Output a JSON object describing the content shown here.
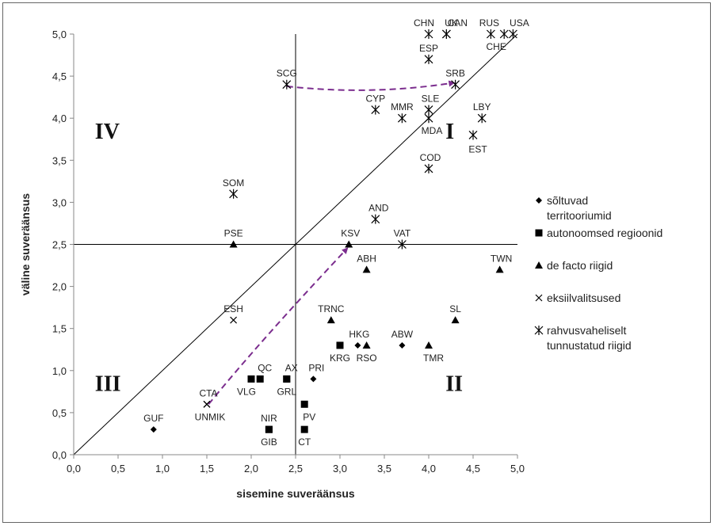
{
  "chart_data": {
    "type": "scatter",
    "xlabel": "sisemine suveräänsus",
    "ylabel": "väline suveräänsus",
    "xlim": [
      0,
      5
    ],
    "ylim": [
      0,
      5
    ],
    "x_ticks": [
      "0,0",
      "0,5",
      "1,0",
      "1,5",
      "2,0",
      "2,5",
      "3,0",
      "3,5",
      "4,0",
      "4,5",
      "5,0"
    ],
    "y_ticks": [
      "0,0",
      "0,5",
      "1,0",
      "1,5",
      "2,0",
      "2,5",
      "3,0",
      "3,5",
      "4,0",
      "4,5",
      "5,0"
    ],
    "legend_position": "right",
    "grid": false,
    "reference_lines": {
      "vertical_x": 2.5,
      "horizontal_y": 2.5,
      "diagonal": true
    },
    "quadrant_labels": [
      {
        "text": "I",
        "x": 4.35,
        "y": 3.85
      },
      {
        "text": "II",
        "x": 4.35,
        "y": 0.85
      },
      {
        "text": "III",
        "x": 0.4,
        "y": 0.85
      },
      {
        "text": "IV",
        "x": 0.4,
        "y": 3.85
      }
    ],
    "series": [
      {
        "name": "sõltuvad territooriumid",
        "marker": "diamond",
        "points": [
          {
            "label": "GUF",
            "x": 0.9,
            "y": 0.3
          },
          {
            "label": "PRI",
            "x": 2.7,
            "y": 0.9
          },
          {
            "label": "HKG",
            "x": 3.2,
            "y": 1.3
          },
          {
            "label": "ABW",
            "x": 3.7,
            "y": 1.3
          }
        ]
      },
      {
        "name": "autonoomsed regioonid",
        "marker": "square",
        "points": [
          {
            "label": "VLG",
            "x": 2.0,
            "y": 0.9
          },
          {
            "label": "QC",
            "x": 2.1,
            "y": 0.9
          },
          {
            "label": "AX",
            "x": 2.4,
            "y": 0.9
          },
          {
            "label": "GRL",
            "x": 2.4,
            "y": 0.9
          },
          {
            "label": "NIR",
            "x": 2.2,
            "y": 0.3
          },
          {
            "label": "GIB",
            "x": 2.2,
            "y": 0.3
          },
          {
            "label": "PV",
            "x": 2.6,
            "y": 0.6
          },
          {
            "label": "CT",
            "x": 2.6,
            "y": 0.3
          },
          {
            "label": "KRG",
            "x": 3.0,
            "y": 1.3
          }
        ]
      },
      {
        "name": "de facto riigid",
        "marker": "triangle",
        "points": [
          {
            "label": "PSE",
            "x": 1.8,
            "y": 2.5
          },
          {
            "label": "KSV",
            "x": 3.1,
            "y": 2.5
          },
          {
            "label": "ABH",
            "x": 3.3,
            "y": 2.2
          },
          {
            "label": "TWN",
            "x": 4.8,
            "y": 2.2
          },
          {
            "label": "TRNC",
            "x": 2.9,
            "y": 1.6
          },
          {
            "label": "SL",
            "x": 4.3,
            "y": 1.6
          },
          {
            "label": "RSO",
            "x": 3.3,
            "y": 1.3
          },
          {
            "label": "TMR",
            "x": 4.0,
            "y": 1.3
          }
        ]
      },
      {
        "name": "eksiilvalitsused",
        "marker": "x",
        "points": [
          {
            "label": "ESH",
            "x": 1.8,
            "y": 1.6
          },
          {
            "label": "CTA",
            "x": 1.5,
            "y": 0.6
          },
          {
            "label": "UNMIK",
            "x": 1.5,
            "y": 0.6
          }
        ]
      },
      {
        "name": "rahvusvaheliselt tunnustatud riigid",
        "marker": "asterisk",
        "points": [
          {
            "label": "CHN",
            "x": 4.0,
            "y": 5.0
          },
          {
            "label": "CAN",
            "x": 4.2,
            "y": 5.0
          },
          {
            "label": "UK",
            "x": 4.2,
            "y": 5.0
          },
          {
            "label": "RUS",
            "x": 4.7,
            "y": 5.0
          },
          {
            "label": "USA",
            "x": 4.95,
            "y": 5.0
          },
          {
            "label": "CHE",
            "x": 4.85,
            "y": 5.0
          },
          {
            "label": "ESP",
            "x": 4.0,
            "y": 4.7
          },
          {
            "label": "SCG",
            "x": 2.4,
            "y": 4.4
          },
          {
            "label": "SRB",
            "x": 4.3,
            "y": 4.4
          },
          {
            "label": "CYP",
            "x": 3.4,
            "y": 4.1
          },
          {
            "label": "SLE",
            "x": 4.0,
            "y": 4.1
          },
          {
            "label": "MMR",
            "x": 3.7,
            "y": 4.0
          },
          {
            "label": "MDA",
            "x": 4.0,
            "y": 4.0
          },
          {
            "label": "LBY",
            "x": 4.6,
            "y": 4.0
          },
          {
            "label": "EST",
            "x": 4.5,
            "y": 3.8
          },
          {
            "label": "COD",
            "x": 4.0,
            "y": 3.4
          },
          {
            "label": "SOM",
            "x": 1.8,
            "y": 3.1
          },
          {
            "label": "AND",
            "x": 3.4,
            "y": 2.8
          },
          {
            "label": "VAT",
            "x": 3.7,
            "y": 2.5
          }
        ]
      }
    ],
    "arrows": [
      {
        "from": [
          2.4,
          4.38
        ],
        "to": [
          4.28,
          4.42
        ],
        "style": "dashed",
        "color": "#7b2d8e",
        "curve": "up"
      },
      {
        "from": [
          1.52,
          0.6
        ],
        "to": [
          3.08,
          2.45
        ],
        "style": "dashed",
        "color": "#7b2d8e",
        "curve": "up"
      }
    ]
  }
}
